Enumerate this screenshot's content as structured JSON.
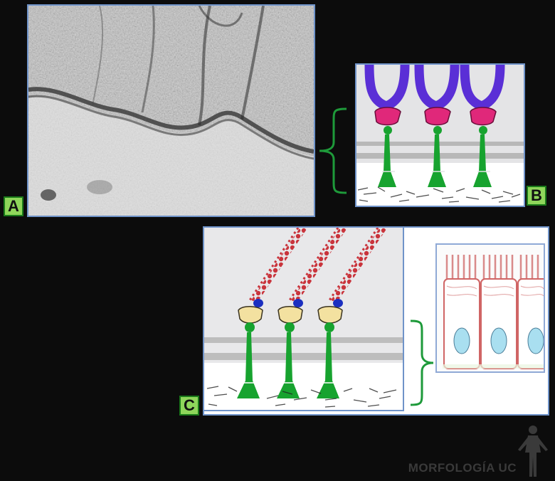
{
  "labels": {
    "a": "A",
    "b": "B",
    "c": "C"
  },
  "watermark": {
    "text": "MORFOLOGÍA UC",
    "figure_icon": "human-figure-icon"
  },
  "colors": {
    "panel_border": "#6f93c9",
    "label_fill": "#8fd65b",
    "brace": "#1e9a3a",
    "protein_green": "#17a32f",
    "actin_red": "#c9343c",
    "myosin_purple": "#5a2fd6",
    "cap_pink": "#e0287a",
    "cap_yellow": "#f3e1a0",
    "blue_cap": "#1b2fc0",
    "nucleus": "#a9dff0"
  }
}
